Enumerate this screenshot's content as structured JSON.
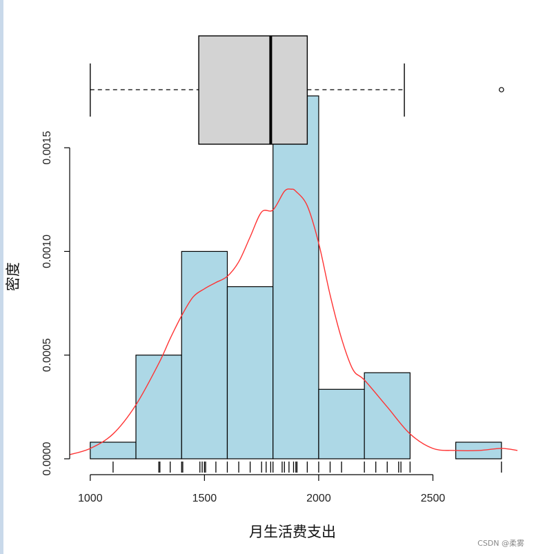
{
  "chart_data": {
    "type": "bar",
    "subtype": "histogram with density curve, boxplot and rug",
    "xlabel": "月生活费支出",
    "ylabel": "密度",
    "xlim": [
      910,
      2870
    ],
    "ylim": [
      0,
      0.00175
    ],
    "x_ticks": [
      "1000",
      "1500",
      "2000",
      "2500"
    ],
    "y_ticks": [
      "0.0000",
      "0.0005",
      "0.0010",
      "0.0015"
    ],
    "colors": {
      "bar_fill": "#add8e6",
      "density_line": "#ff3333",
      "box_fill": "#d3d3d3"
    },
    "histogram": {
      "bin_width": 200,
      "bins": [
        {
          "start": 1000,
          "end": 1200,
          "density": 8e-05
        },
        {
          "start": 1200,
          "end": 1400,
          "density": 0.0005
        },
        {
          "start": 1400,
          "end": 1600,
          "density": 0.001
        },
        {
          "start": 1600,
          "end": 1800,
          "density": 0.00083
        },
        {
          "start": 1800,
          "end": 2000,
          "density": 0.00175
        },
        {
          "start": 2000,
          "end": 2200,
          "density": 0.000335
        },
        {
          "start": 2200,
          "end": 2400,
          "density": 0.000415
        },
        {
          "start": 2400,
          "end": 2600,
          "density": 0
        },
        {
          "start": 2600,
          "end": 2800,
          "density": 8e-05
        }
      ]
    },
    "density_curve": {
      "x": [
        910,
        1000,
        1100,
        1200,
        1300,
        1350,
        1400,
        1450,
        1500,
        1550,
        1600,
        1650,
        1700,
        1750,
        1800,
        1850,
        1880,
        1900,
        1950,
        2000,
        2050,
        2100,
        2150,
        2200,
        2300,
        2400,
        2500,
        2600,
        2700,
        2800,
        2870
      ],
      "y": [
        2e-05,
        5e-05,
        0.00012,
        0.00026,
        0.00046,
        0.00058,
        0.00069,
        0.00078,
        0.00082,
        0.00085,
        0.00088,
        0.00095,
        0.00107,
        0.00119,
        0.0012,
        0.00129,
        0.0013,
        0.00129,
        0.00122,
        0.00104,
        0.00079,
        0.00058,
        0.00043,
        0.00038,
        0.00025,
        0.00012,
        5e-05,
        4e-05,
        4e-05,
        5e-05,
        4e-05
      ]
    },
    "boxplot": {
      "min": 1000,
      "q1": 1475,
      "median": 1790,
      "q3": 1950,
      "max": 2375,
      "outliers": [
        2800
      ]
    },
    "rug": [
      1100,
      1300,
      1305,
      1350,
      1400,
      1405,
      1480,
      1490,
      1500,
      1505,
      1550,
      1600,
      1650,
      1700,
      1750,
      1770,
      1790,
      1800,
      1840,
      1850,
      1870,
      1890,
      1900,
      1905,
      1950,
      2000,
      2050,
      2100,
      2200,
      2250,
      2300,
      2350,
      2360,
      2400,
      2800
    ]
  },
  "watermark": "CSDN @柔雾"
}
